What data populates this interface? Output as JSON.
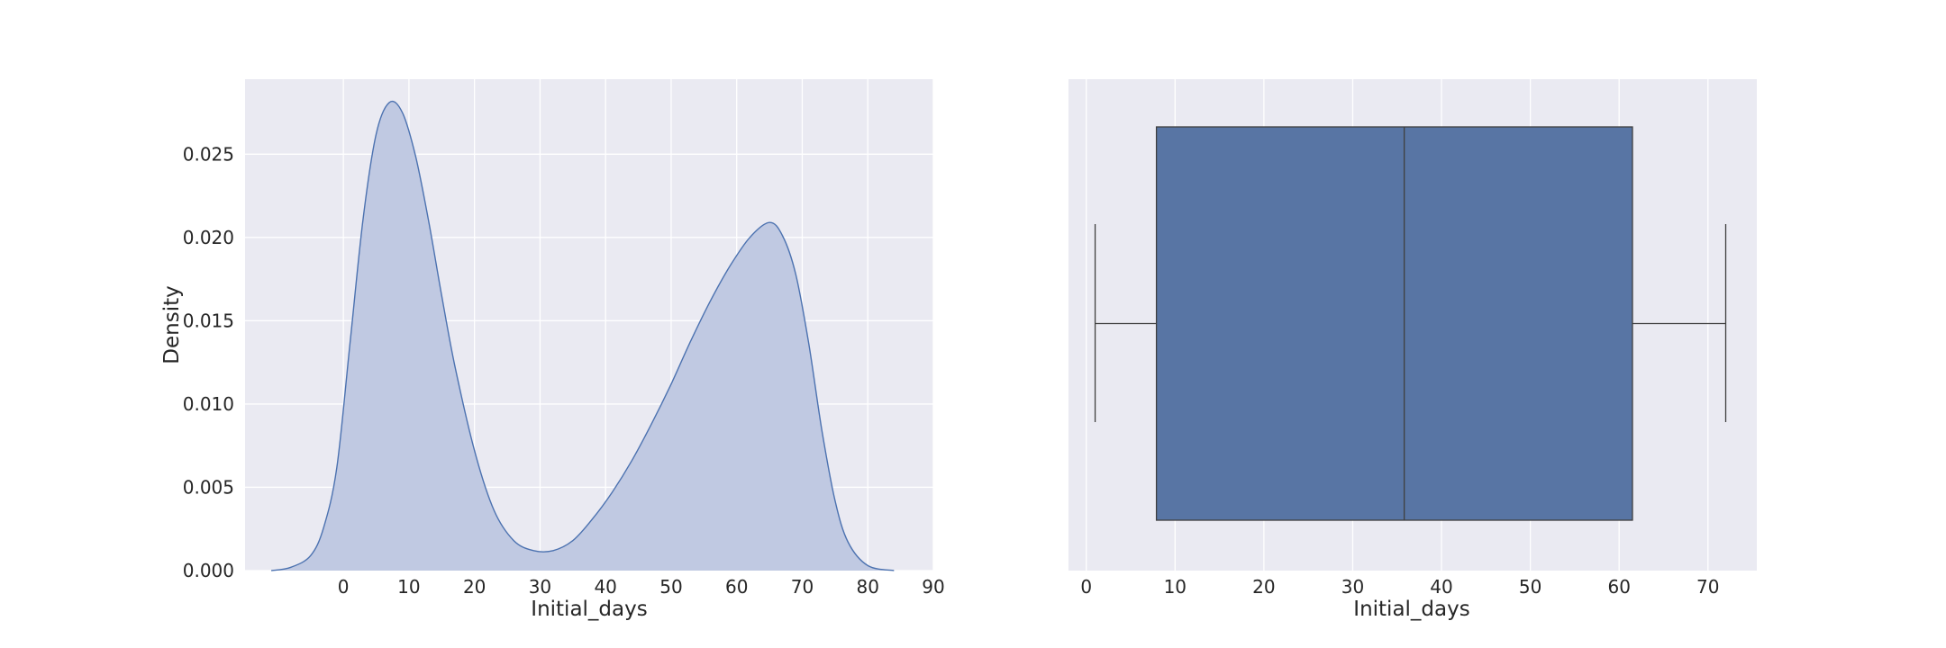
{
  "chart_data": [
    {
      "type": "area",
      "subtype": "kde",
      "xlabel": "Initial_days",
      "ylabel": "Density",
      "xlim": [
        -15,
        90
      ],
      "ylim": [
        0,
        0.0295
      ],
      "xticks": [
        0,
        10,
        20,
        30,
        40,
        50,
        60,
        70,
        80,
        90
      ],
      "xtick_labels": [
        "0",
        "10",
        "20",
        "30",
        "40",
        "50",
        "60",
        "70",
        "80",
        "90"
      ],
      "yticks": [
        0,
        0.005,
        0.01,
        0.015,
        0.02,
        0.025
      ],
      "ytick_labels": [
        "0.000",
        "0.005",
        "0.010",
        "0.015",
        "0.020",
        "0.025"
      ],
      "grid": true,
      "colors": {
        "line": "#4c72b0",
        "fill": "#c0c9e2",
        "background": "#eaeaf2"
      },
      "x": [
        -11,
        -8,
        -5,
        -3,
        -1,
        1,
        3,
        5,
        7,
        9,
        11,
        13,
        15,
        17,
        20,
        23,
        26,
        29,
        32,
        35,
        38,
        41,
        44,
        47,
        50,
        53,
        56,
        59,
        62,
        65,
        67,
        69,
        71,
        73,
        75,
        77,
        80,
        84
      ],
      "y": [
        0.0,
        0.0002,
        0.0009,
        0.0026,
        0.0062,
        0.0136,
        0.0211,
        0.0262,
        0.0281,
        0.0275,
        0.0249,
        0.021,
        0.0165,
        0.0123,
        0.0072,
        0.0036,
        0.0018,
        0.0012,
        0.0012,
        0.0018,
        0.0031,
        0.0047,
        0.0066,
        0.0088,
        0.0112,
        0.0138,
        0.0162,
        0.0183,
        0.02,
        0.0209,
        0.0201,
        0.0178,
        0.0136,
        0.0084,
        0.0042,
        0.0017,
        0.0003,
        0.0
      ]
    },
    {
      "type": "box",
      "xlabel": "Initial_days",
      "xlim": [
        -2,
        75.5
      ],
      "xticks": [
        0,
        10,
        20,
        30,
        40,
        50,
        60,
        70
      ],
      "xtick_labels": [
        "0",
        "10",
        "20",
        "30",
        "40",
        "50",
        "60",
        "70"
      ],
      "grid": true,
      "stats": {
        "whislo": 1.0,
        "q1": 7.9,
        "med": 35.8,
        "q3": 61.5,
        "whishi": 72.0
      },
      "colors": {
        "box": "#5875a4",
        "edge": "#3f3f3f",
        "background": "#eaeaf2"
      }
    }
  ]
}
